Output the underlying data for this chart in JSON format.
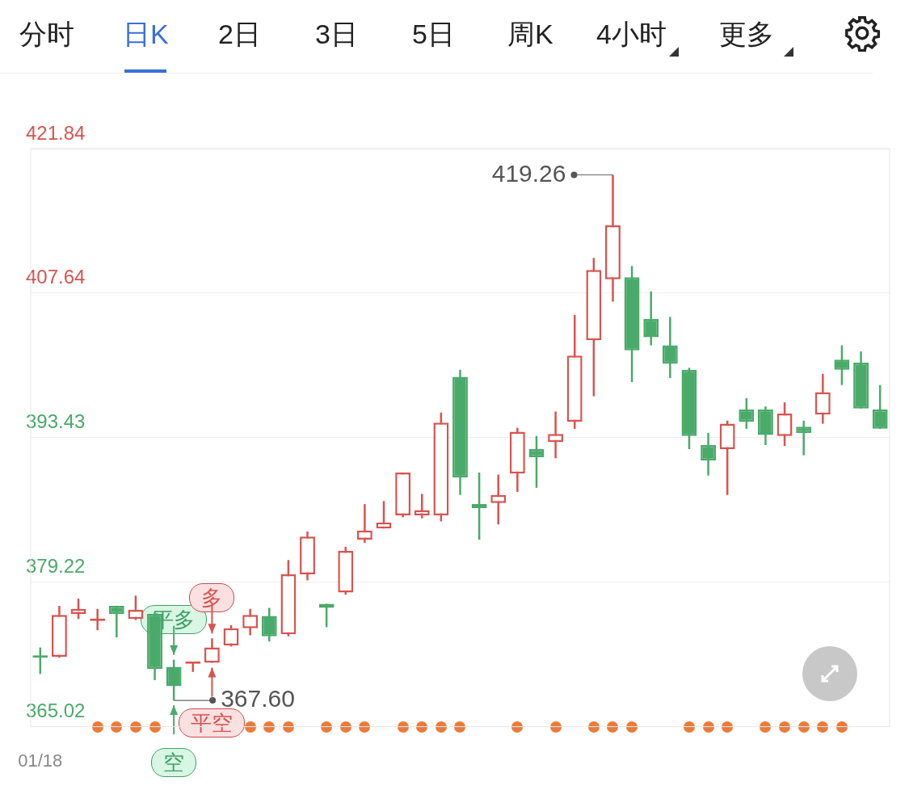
{
  "chart_data": {
    "type": "candlestick",
    "annotations": [
      "分时",
      "日K",
      "2日",
      "3日",
      "5日",
      "周K",
      "4小时",
      "更多",
      "平多",
      "多",
      "平空",
      "空",
      "419.26",
      "367.60"
    ],
    "categories": [
      "01/18",
      null,
      null,
      null,
      null,
      null,
      null,
      null,
      null,
      null,
      null,
      null,
      null,
      null,
      null,
      null,
      null,
      null,
      null,
      null,
      null,
      null,
      null,
      null,
      null,
      null,
      null,
      null,
      null,
      null,
      null,
      null,
      null,
      null,
      null,
      null,
      null,
      null,
      null,
      null,
      null,
      null,
      null,
      null,
      null
    ],
    "ohlc": [
      [
        372.0,
        372.8,
        370.2,
        371.8
      ],
      [
        371.9,
        376.9,
        371.8,
        376.0
      ],
      [
        376.1,
        377.6,
        375.6,
        376.6
      ],
      [
        375.4,
        376.6,
        374.5,
        375.5
      ],
      [
        376.9,
        376.9,
        373.8,
        376.1
      ],
      [
        375.6,
        377.9,
        375.5,
        376.5
      ],
      [
        376.1,
        376.3,
        369.6,
        370.7
      ],
      [
        370.9,
        371.6,
        367.6,
        369.0
      ],
      [
        371.2,
        371.4,
        370.4,
        371.4
      ],
      [
        371.3,
        373.7,
        371.3,
        372.8
      ],
      [
        373.0,
        375.0,
        372.9,
        374.7
      ],
      [
        374.7,
        376.6,
        374.0,
        376.0
      ],
      [
        375.9,
        376.7,
        373.4,
        373.9
      ],
      [
        374.1,
        381.4,
        373.9,
        380.0
      ],
      [
        380.0,
        384.2,
        379.4,
        383.7
      ],
      [
        377.1,
        377.1,
        374.8,
        376.7
      ],
      [
        378.2,
        382.7,
        378.0,
        382.3
      ],
      [
        383.4,
        386.9,
        383.1,
        384.3
      ],
      [
        384.5,
        387.2,
        384.5,
        385.1
      ],
      [
        385.8,
        390.0,
        385.6,
        390.0
      ],
      [
        385.8,
        387.9,
        385.5,
        386.3
      ],
      [
        385.8,
        395.9,
        385.2,
        394.9
      ],
      [
        399.4,
        400.1,
        387.8,
        389.5
      ],
      [
        386.9,
        390.0,
        383.4,
        386.5
      ],
      [
        387.0,
        389.8,
        384.9,
        387.8
      ],
      [
        389.9,
        394.4,
        388.1,
        394.0
      ],
      [
        392.3,
        393.6,
        388.5,
        391.5
      ],
      [
        393.0,
        396.0,
        391.4,
        393.8
      ],
      [
        395.0,
        405.5,
        394.3,
        401.5
      ],
      [
        403.0,
        411.1,
        397.5,
        409.9
      ],
      [
        409.0,
        419.26,
        406.8,
        414.3
      ],
      [
        409.2,
        410.3,
        398.9,
        402.0
      ],
      [
        405.1,
        407.8,
        402.5,
        403.3
      ],
      [
        402.5,
        405.3,
        399.3,
        400.7
      ],
      [
        400.1,
        400.3,
        392.3,
        393.6
      ],
      [
        392.7,
        393.9,
        389.7,
        391.2
      ],
      [
        392.3,
        395.1,
        387.8,
        394.8
      ],
      [
        396.2,
        397.3,
        394.3,
        395.0
      ],
      [
        396.2,
        396.5,
        392.7,
        393.7
      ],
      [
        393.6,
        396.9,
        392.6,
        395.8
      ],
      [
        394.5,
        395.1,
        391.7,
        393.9
      ],
      [
        395.7,
        399.7,
        394.8,
        397.9
      ],
      [
        401.1,
        402.5,
        398.6,
        400.1
      ],
      [
        400.8,
        401.9,
        396.3,
        396.3
      ],
      [
        396.2,
        398.6,
        394.3,
        394.3
      ]
    ],
    "ylim": [
      365.02,
      421.84
    ],
    "yticks": [
      365.02,
      379.22,
      393.43,
      407.64,
      421.84
    ],
    "grid": "y",
    "legend": false
  }
}
